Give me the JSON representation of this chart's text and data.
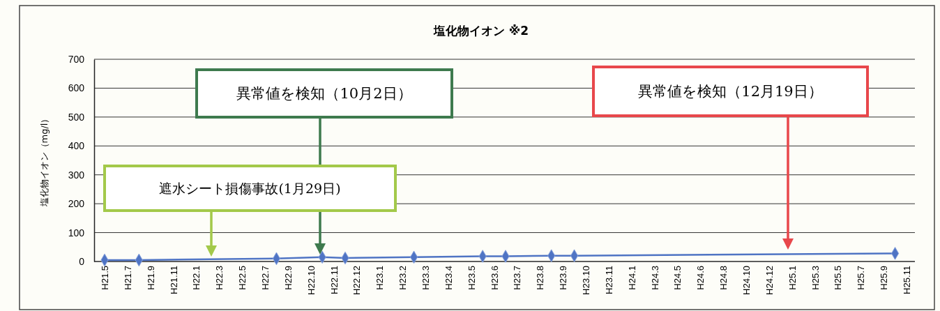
{
  "chart_data": {
    "type": "line",
    "title": "塩化物イオン ※2",
    "ylabel": "塩化物イオン（mg/l）",
    "categories": [
      "H21.5",
      null,
      "H21.7",
      null,
      "H21.9",
      null,
      "H21.11",
      null,
      "H22.1",
      null,
      "H22.3",
      null,
      "H22.5",
      null,
      "H22.7",
      null,
      "H22.9",
      null,
      "H22.10",
      null,
      "H22.11",
      null,
      "H22.12",
      null,
      "H23.1",
      null,
      "H23.2",
      null,
      "H23.3",
      null,
      "H23.4",
      null,
      "H23.5",
      null,
      "H23.6",
      null,
      "H23.7",
      null,
      "H23.8",
      null,
      "H23.9",
      null,
      "H23.10",
      null,
      "H23.11",
      null,
      "H24.1",
      null,
      "H24.3",
      null,
      "H24.5",
      null,
      "H24.6",
      null,
      "H24.8",
      null,
      "H24.10",
      null,
      "H24.12",
      null,
      "H25.1",
      null,
      "H25.3",
      null,
      "H25.5",
      null,
      "H25.7",
      null,
      "H25.9",
      null,
      "H25.11"
    ],
    "series": [
      {
        "color": "#4f74c4",
        "values": [
          5,
          null,
          null,
          5,
          null,
          null,
          null,
          null,
          null,
          null,
          null,
          null,
          null,
          null,
          null,
          10,
          null,
          null,
          null,
          15,
          null,
          12,
          null,
          null,
          null,
          null,
          null,
          15,
          null,
          null,
          null,
          null,
          null,
          18,
          null,
          18,
          null,
          null,
          null,
          20,
          null,
          20,
          null,
          null,
          null,
          null,
          null,
          null,
          null,
          null,
          null,
          null,
          null,
          null,
          null,
          null,
          null,
          null,
          null,
          null,
          null,
          null,
          null,
          null,
          null,
          null,
          null,
          null,
          null,
          28,
          null
        ]
      }
    ],
    "ylim": [
      0,
      700
    ],
    "yticks": [
      0,
      100,
      200,
      300,
      400,
      500,
      600,
      700
    ],
    "grid": "y",
    "marker": "diamond",
    "line_style": "solid",
    "annotations": [
      "遮水シート損傷事故(1月29日)",
      "異常値を検知（10月2日）",
      "異常値を検知（12月19日）"
    ]
  }
}
